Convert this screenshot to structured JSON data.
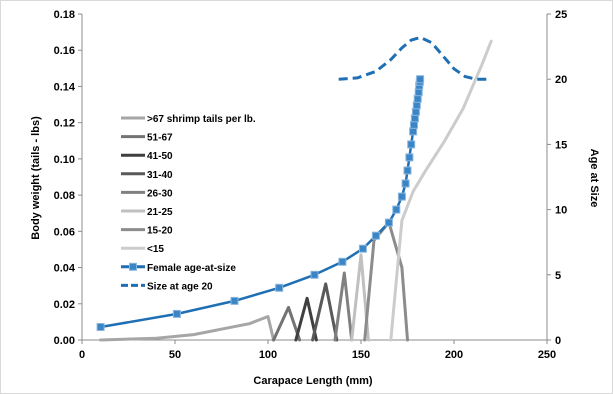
{
  "chart_data": {
    "type": "line",
    "x_axis": {
      "label": "Carapace Length (mm)",
      "range": [
        0,
        250
      ],
      "ticks": [
        0,
        50,
        100,
        150,
        200,
        250
      ],
      "tick_labels": [
        "0",
        "50",
        "100",
        "150",
        "200",
        "250"
      ]
    },
    "y_axis_left": {
      "label": "Body weight (tails - lbs)",
      "range": [
        0,
        0.18
      ],
      "ticks": [
        0,
        0.02,
        0.04,
        0.06,
        0.08,
        0.1,
        0.12,
        0.14,
        0.16,
        0.18
      ],
      "tick_labels": [
        "0.00",
        "0.02",
        "0.04",
        "0.06",
        "0.08",
        "0.10",
        "0.12",
        "0.14",
        "0.16",
        "0.18"
      ]
    },
    "y_axis_right": {
      "label": "Age at Size",
      "range": [
        0,
        25
      ],
      "ticks": [
        0,
        5,
        10,
        15,
        20,
        25
      ],
      "tick_labels": [
        "0",
        "5",
        "10",
        "15",
        "20",
        "25"
      ]
    },
    "grid": false,
    "legend_position": "left-middle",
    "series": [
      {
        "name": ">67 shrimp tails per lb.",
        "axis": "left",
        "color": "#a6a6a6",
        "x": [
          10,
          40,
          60,
          80,
          90,
          100,
          103
        ],
        "y": [
          0,
          0.001,
          0.003,
          0.007,
          0.009,
          0.013,
          0
        ]
      },
      {
        "name": "51-67",
        "axis": "left",
        "color": "#737373",
        "x": [
          103,
          111,
          117
        ],
        "y": [
          0,
          0.018,
          0
        ]
      },
      {
        "name": "41-50",
        "axis": "left",
        "color": "#3f3f3f",
        "x": [
          115,
          121,
          126
        ],
        "y": [
          0,
          0.023,
          0
        ]
      },
      {
        "name": "31-40",
        "axis": "left",
        "color": "#595959",
        "x": [
          124,
          131,
          137
        ],
        "y": [
          0,
          0.031,
          0
        ]
      },
      {
        "name": "26-30",
        "axis": "left",
        "color": "#808080",
        "x": [
          136,
          141,
          145
        ],
        "y": [
          0,
          0.037,
          0
        ]
      },
      {
        "name": "21-25",
        "axis": "left",
        "color": "#c0c0c0",
        "x": [
          145,
          150,
          154
        ],
        "y": [
          0,
          0.047,
          0
        ]
      },
      {
        "name": "15-20",
        "axis": "left",
        "color": "#8c8c8c",
        "x": [
          152,
          157,
          165,
          172,
          175
        ],
        "y": [
          0,
          0.055,
          0.065,
          0.04,
          0
        ]
      },
      {
        "name": "<15",
        "axis": "left",
        "color": "#cccccc",
        "x": [
          166,
          172,
          178,
          185,
          195,
          205,
          215,
          220
        ],
        "y": [
          0,
          0.066,
          0.082,
          0.094,
          0.11,
          0.128,
          0.152,
          0.165
        ]
      },
      {
        "name": "Female age-at-size",
        "axis": "right",
        "color": "#1f6fb5",
        "markers": true,
        "x": [
          10,
          51,
          82,
          106,
          125,
          140,
          151,
          158,
          165,
          169,
          172,
          174,
          175,
          176,
          177,
          178,
          178.5,
          179,
          179.5,
          180,
          180.5,
          181,
          181.3,
          181.6,
          181.8
        ],
        "y": [
          1,
          2,
          3,
          4,
          5,
          6,
          7,
          8,
          9,
          10,
          11,
          12,
          13,
          14,
          15,
          16,
          16.5,
          17,
          17.5,
          18,
          18.5,
          19,
          19.5,
          19.8,
          20
        ]
      },
      {
        "name": "Size at age 20",
        "axis": "right",
        "color": "#1f6fb5",
        "dashed": true,
        "x": [
          138,
          148,
          158,
          166,
          172,
          177,
          182,
          188,
          194,
          200,
          206,
          212,
          220
        ],
        "y": [
          20,
          20.1,
          20.6,
          21.5,
          22.4,
          23,
          23.2,
          22.8,
          21.8,
          20.8,
          20.2,
          20,
          20
        ]
      }
    ]
  }
}
